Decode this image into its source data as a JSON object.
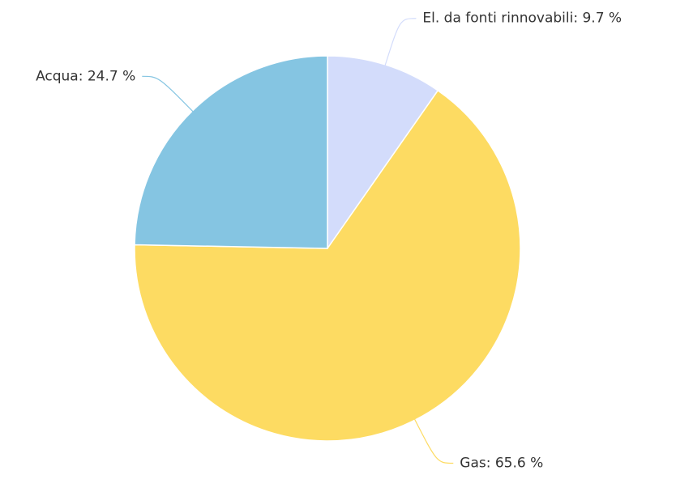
{
  "chart_data": {
    "type": "pie",
    "values": [
      9.7,
      65.6,
      24.7
    ],
    "value_labels": [
      "El. da fonti rinnovabili: 9.7 %",
      "Gas: 65.6 %",
      "Acqua: 24.7 %"
    ],
    "colors": [
      "#d3dcfb",
      "#fddb62",
      "#85c5e2"
    ]
  }
}
